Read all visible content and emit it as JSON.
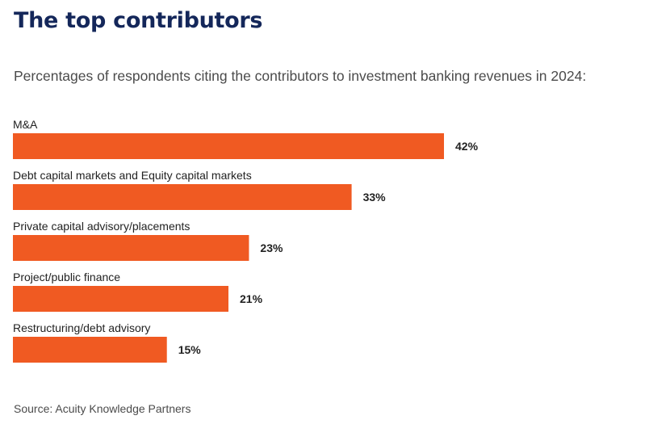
{
  "chart_data": {
    "type": "bar",
    "orientation": "horizontal",
    "title": "The top contributors",
    "subtitle": "Percentages of respondents citing the contributors to investment banking revenues in 2024:",
    "categories": [
      "M&A",
      "Debt capital markets and Equity capital markets",
      "Private capital advisory/placements",
      "Project/public finance",
      "Restructuring/debt advisory"
    ],
    "values": [
      42,
      33,
      23,
      21,
      15
    ],
    "value_labels": [
      "42%",
      "33%",
      "23%",
      "21%",
      "15%"
    ],
    "unit": "%",
    "xlim": [
      0,
      42
    ],
    "grid": false,
    "legend": "none",
    "bar_color": "#f05a22",
    "source": "Source: Acuity Knowledge Partners"
  },
  "colors": {
    "title": "#14275a",
    "bar": "#f05a22",
    "text": "#222222",
    "muted_text": "#4b4b4b"
  }
}
